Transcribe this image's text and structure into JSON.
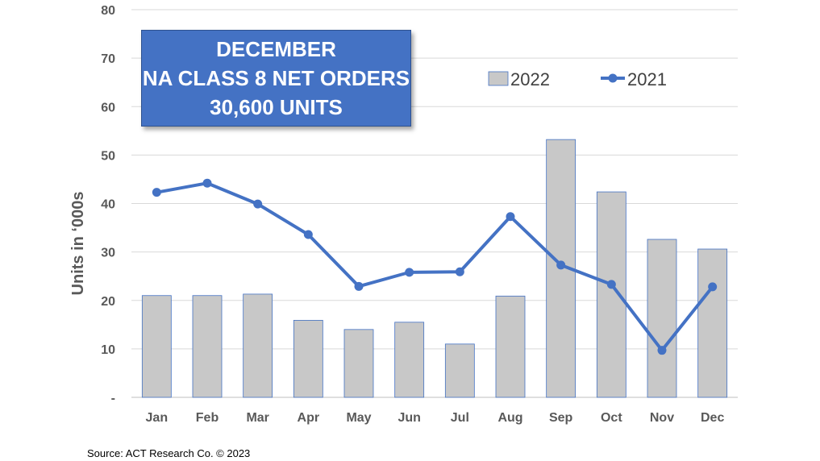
{
  "callout": {
    "line1": "DECEMBER",
    "line2": "NA CLASS 8 NET ORDERS",
    "line3": "30,600  UNITS"
  },
  "source": "Source: ACT Research Co. © 2023",
  "colors": {
    "bar_fill": "#c8c8c8",
    "bar_stroke": "#4472c4",
    "line": "#4472c4",
    "callout_bg": "#4472c4"
  },
  "chart_data": {
    "type": "bar",
    "categories": [
      "Jan",
      "Feb",
      "Mar",
      "Apr",
      "May",
      "Jun",
      "Jul",
      "Aug",
      "Sep",
      "Oct",
      "Nov",
      "Dec"
    ],
    "series": [
      {
        "name": "2022",
        "type": "bar",
        "values": [
          21.0,
          21.0,
          21.3,
          15.9,
          14.0,
          15.5,
          11.0,
          20.9,
          53.2,
          42.4,
          32.6,
          30.6
        ]
      },
      {
        "name": "2021",
        "type": "line",
        "values": [
          42.3,
          44.2,
          39.9,
          33.6,
          22.9,
          25.8,
          25.9,
          37.3,
          27.3,
          23.3,
          9.7,
          22.8
        ]
      }
    ],
    "ylabel": "Units in ‘000s",
    "ylim": [
      0,
      80
    ],
    "yticks": [
      0,
      10,
      20,
      30,
      40,
      50,
      60,
      70,
      80
    ],
    "yticklabels": [
      "-",
      "10",
      "20",
      "30",
      "40",
      "50",
      "60",
      "70",
      "80"
    ],
    "grid": true,
    "legend": "top-right"
  }
}
